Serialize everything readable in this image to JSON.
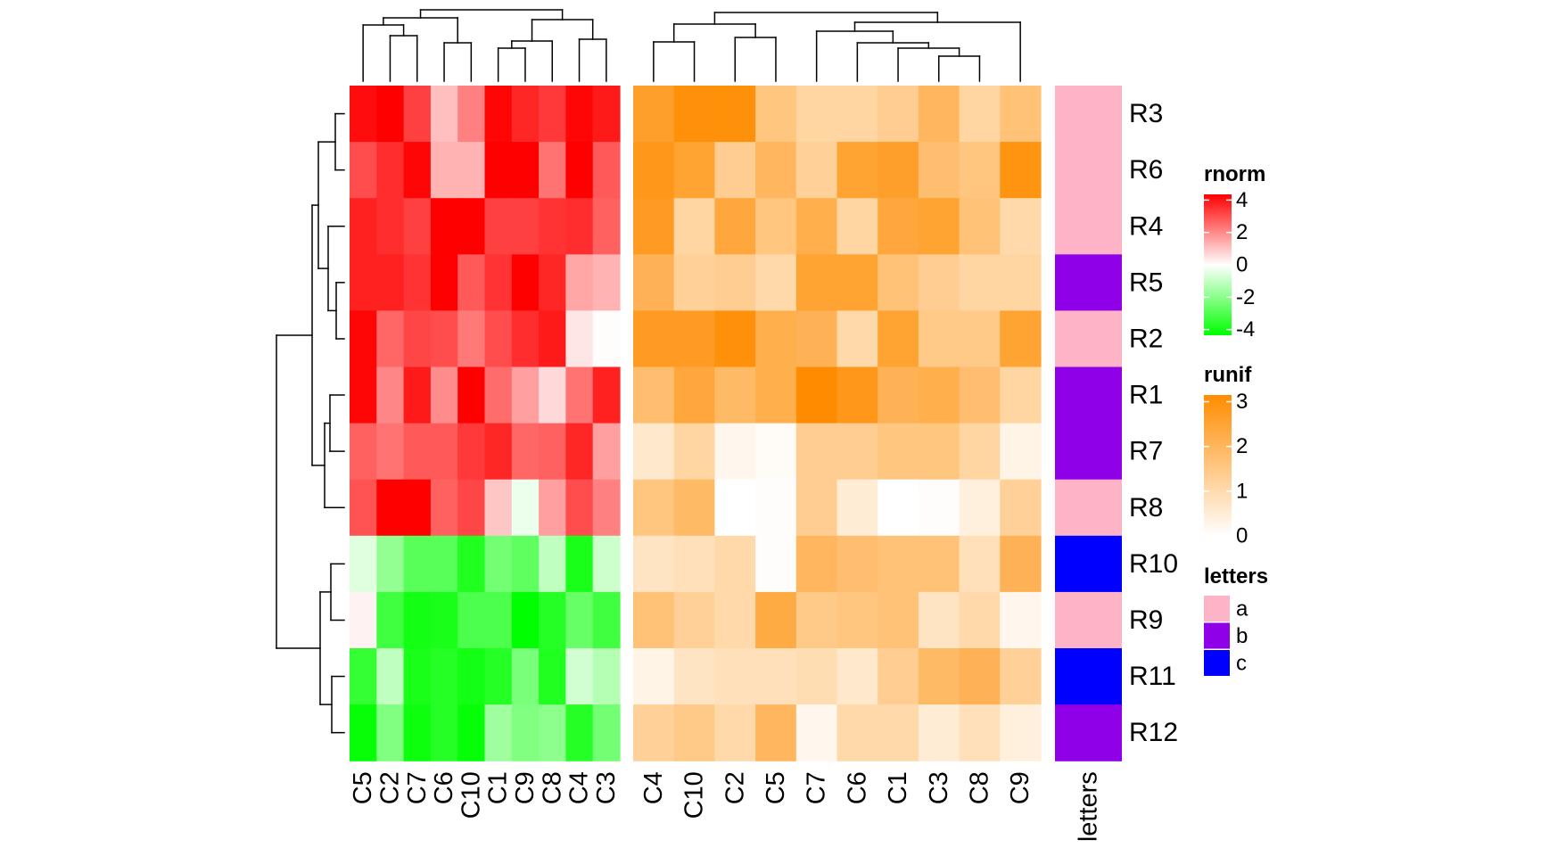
{
  "chart_data": [
    {
      "type": "heatmap",
      "name": "rnorm",
      "columns": [
        "C5",
        "C2",
        "C7",
        "C6",
        "C10",
        "C1",
        "C9",
        "C8",
        "C4",
        "C3"
      ],
      "rows": [
        "R3",
        "R6",
        "R4",
        "R5",
        "R2",
        "R1",
        "R7",
        "R8",
        "R10",
        "R9",
        "R11",
        "R12"
      ],
      "values": [
        [
          3.8,
          4.0,
          3.0,
          1.0,
          2.0,
          3.9,
          3.4,
          3.1,
          3.9,
          3.6
        ],
        [
          2.8,
          3.3,
          3.9,
          1.2,
          1.2,
          4.0,
          4.0,
          2.2,
          4.0,
          2.6
        ],
        [
          3.5,
          3.3,
          3.0,
          4.0,
          4.0,
          3.0,
          3.0,
          3.2,
          3.3,
          2.5
        ],
        [
          3.5,
          3.5,
          3.2,
          4.0,
          2.6,
          3.2,
          4.0,
          3.4,
          1.4,
          1.2
        ],
        [
          3.9,
          2.4,
          2.9,
          2.8,
          2.1,
          2.8,
          3.3,
          3.6,
          0.4,
          0.05
        ],
        [
          3.9,
          1.9,
          3.6,
          1.8,
          4.0,
          2.3,
          1.5,
          0.6,
          2.2,
          3.5
        ],
        [
          2.5,
          2.2,
          2.6,
          2.6,
          3.1,
          3.4,
          2.4,
          2.5,
          3.4,
          1.5
        ],
        [
          2.7,
          4.0,
          4.0,
          2.5,
          2.9,
          0.9,
          -0.3,
          1.5,
          2.8,
          2.0
        ],
        [
          -0.5,
          -1.7,
          -2.6,
          -2.6,
          -3.5,
          -2.2,
          -2.5,
          -1.0,
          -3.6,
          -0.8
        ],
        [
          0.2,
          -3.0,
          -3.7,
          -3.6,
          -2.8,
          -2.8,
          -4.0,
          -3.4,
          -2.4,
          -3.0
        ],
        [
          -3.2,
          -1.0,
          -3.6,
          -3.4,
          -3.7,
          -3.4,
          -2.1,
          -3.5,
          -0.7,
          -1.2
        ],
        [
          -3.9,
          -2.0,
          -3.8,
          -3.4,
          -3.9,
          -1.5,
          -2.0,
          -1.8,
          -3.4,
          -2.2
        ]
      ],
      "legend": {
        "title": "rnorm",
        "ticks": [
          4,
          2,
          0,
          -2,
          -4
        ],
        "colors": {
          "high": "#FF0000",
          "mid": "#FFFFFF",
          "low": "#00FF00"
        }
      }
    },
    {
      "type": "heatmap",
      "name": "runif",
      "columns": [
        "C4",
        "C10",
        "C2",
        "C5",
        "C7",
        "C6",
        "C1",
        "C3",
        "C8",
        "C9"
      ],
      "rows": [
        "R3",
        "R6",
        "R4",
        "R5",
        "R2",
        "R1",
        "R7",
        "R8",
        "R10",
        "R9",
        "R11",
        "R12"
      ],
      "values": [
        [
          2.5,
          2.9,
          2.9,
          1.5,
          1.1,
          1.1,
          1.3,
          1.9,
          1.1,
          1.6
        ],
        [
          2.7,
          2.4,
          1.3,
          1.9,
          1.2,
          2.4,
          2.5,
          1.7,
          1.5,
          2.8
        ],
        [
          2.6,
          1.1,
          2.3,
          1.5,
          2.1,
          1.1,
          2.3,
          2.4,
          1.6,
          1.0
        ],
        [
          2.0,
          1.2,
          1.3,
          1.0,
          2.4,
          2.4,
          1.6,
          1.3,
          1.1,
          1.1
        ],
        [
          2.6,
          2.6,
          2.9,
          2.1,
          2.0,
          1.0,
          2.4,
          1.4,
          1.4,
          2.4
        ],
        [
          1.7,
          2.3,
          1.8,
          2.1,
          3.0,
          2.7,
          2.0,
          2.1,
          1.7,
          1.1
        ],
        [
          0.6,
          1.1,
          0.2,
          0.1,
          1.3,
          1.3,
          1.5,
          1.5,
          1.1,
          0.3
        ],
        [
          1.5,
          1.8,
          0.0,
          0.05,
          1.3,
          0.5,
          0.0,
          0.05,
          0.4,
          1.2
        ],
        [
          0.7,
          0.8,
          1.0,
          0.05,
          1.9,
          1.7,
          1.6,
          1.6,
          0.8,
          2.0
        ],
        [
          1.6,
          1.2,
          1.0,
          2.2,
          1.4,
          1.5,
          1.6,
          0.7,
          1.0,
          0.2
        ],
        [
          0.3,
          0.7,
          0.8,
          0.8,
          0.9,
          0.6,
          1.3,
          1.8,
          2.0,
          1.2
        ],
        [
          1.2,
          1.4,
          1.0,
          1.9,
          0.2,
          1.0,
          1.0,
          0.5,
          0.8,
          0.4
        ]
      ],
      "legend": {
        "title": "runif",
        "ticks": [
          3,
          2,
          1,
          0
        ],
        "colors": {
          "high": "#FF8C00",
          "low": "#FFFFFF"
        }
      }
    }
  ],
  "annotation": {
    "title": "letters",
    "column_label": "letters",
    "values": [
      "a",
      "a",
      "a",
      "b",
      "a",
      "b",
      "b",
      "a",
      "c",
      "a",
      "c",
      "b"
    ],
    "categories": [
      {
        "label": "a",
        "color": "#FFB3C6"
      },
      {
        "label": "b",
        "color": "#8F00E8"
      },
      {
        "label": "c",
        "color": "#0000FF"
      }
    ]
  },
  "row_labels": [
    "R3",
    "R6",
    "R4",
    "R5",
    "R2",
    "R1",
    "R7",
    "R8",
    "R10",
    "R9",
    "R11",
    "R12"
  ]
}
